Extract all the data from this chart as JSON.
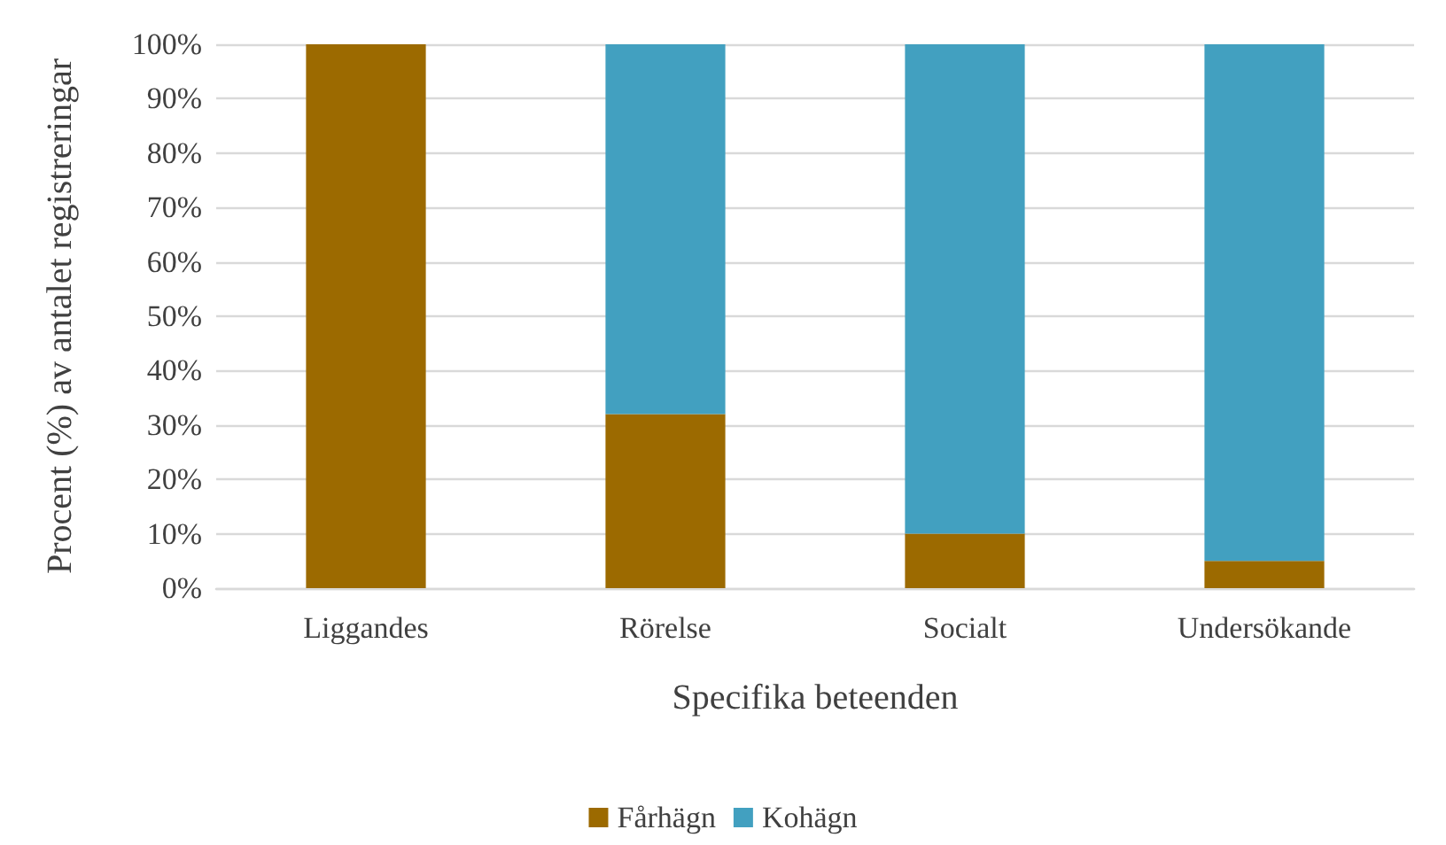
{
  "chart_data": {
    "type": "bar",
    "stacked": true,
    "xlabel": "Specifika beteenden",
    "ylabel": "Procent (%) av antalet registreringar",
    "categories": [
      "Liggandes",
      "Rörelse",
      "Socialt",
      "Undersökande"
    ],
    "series": [
      {
        "name": "Fårhägn",
        "color": "#9c6a00",
        "values": [
          100,
          32,
          10,
          5
        ]
      },
      {
        "name": "Kohägn",
        "color": "#42a0c0",
        "values": [
          0,
          68,
          90,
          95
        ]
      }
    ],
    "ylim": [
      0,
      100
    ],
    "yticks": [
      {
        "value": 0,
        "label": "0%"
      },
      {
        "value": 10,
        "label": "10%"
      },
      {
        "value": 20,
        "label": "20%"
      },
      {
        "value": 30,
        "label": "30%"
      },
      {
        "value": 40,
        "label": "40%"
      },
      {
        "value": 50,
        "label": "50%"
      },
      {
        "value": 60,
        "label": "60%"
      },
      {
        "value": 70,
        "label": "70%"
      },
      {
        "value": 80,
        "label": "80%"
      },
      {
        "value": 90,
        "label": "90%"
      },
      {
        "value": 100,
        "label": "100%"
      }
    ],
    "grid": true,
    "legend": "bottom"
  }
}
